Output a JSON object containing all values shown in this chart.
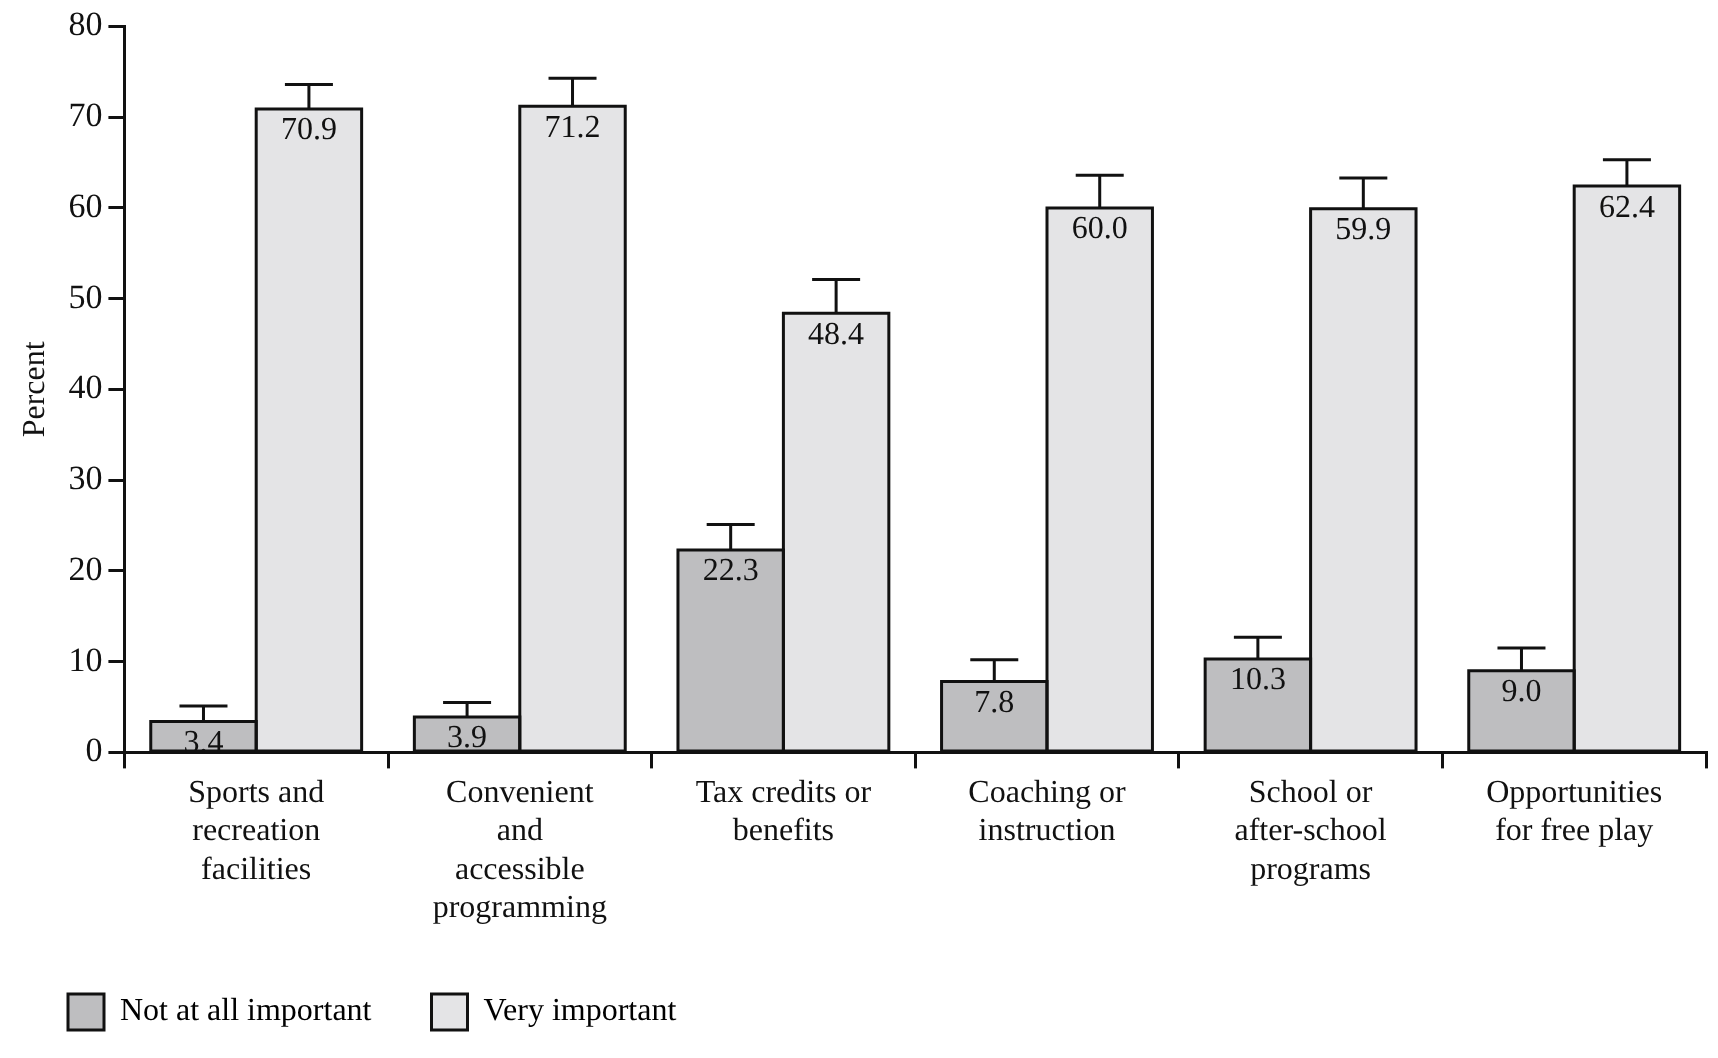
{
  "chart_data": {
    "type": "bar",
    "ylabel": "Percent",
    "categories": [
      "Sports and recreation facilities",
      "Convenient and accessible programming",
      "Tax credits or benefits",
      "Coaching or instruction",
      "School or after-school programs",
      "Opportunities for free play"
    ],
    "series": [
      {
        "name": "Not at all important",
        "color": "#bebec0",
        "values": [
          3.4,
          3.9,
          22.3,
          7.8,
          10.3,
          9.0
        ],
        "value_labels": [
          "3.4",
          "3.9",
          "22.3",
          "7.8",
          "10.3",
          "9.0"
        ],
        "errors": [
          1.7,
          1.6,
          2.8,
          2.4,
          2.4,
          2.5
        ]
      },
      {
        "name": "Very important",
        "color": "#e4e4e6",
        "values": [
          70.9,
          71.2,
          48.4,
          60.0,
          59.9,
          62.4
        ],
        "value_labels": [
          "70.9",
          "71.2",
          "48.4",
          "60.0",
          "59.9",
          "62.4"
        ],
        "errors": [
          2.7,
          3.1,
          3.7,
          3.6,
          3.4,
          2.9
        ]
      }
    ],
    "ylim": [
      0,
      80
    ],
    "yticks": [
      0,
      10,
      20,
      30,
      40,
      50,
      60,
      70,
      80
    ],
    "grid": false,
    "legend": "bottom left",
    "data_labels": true
  }
}
